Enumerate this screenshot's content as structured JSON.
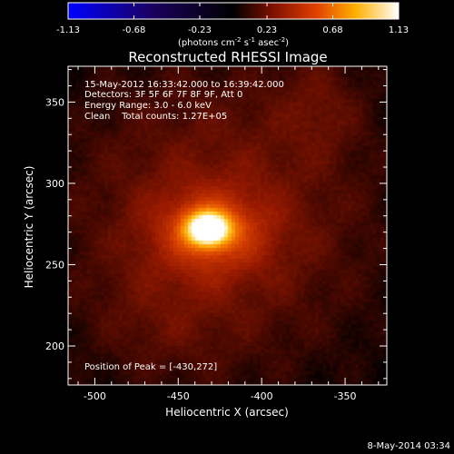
{
  "chart_data": {
    "type": "heatmap",
    "title": "Reconstructed RHESSI Image",
    "xlabel": "Heliocentric X (arcsec)",
    "ylabel": "Heliocentric Y (arcsec)",
    "xlim": [
      -516,
      -325
    ],
    "ylim": [
      176,
      372
    ],
    "x_ticks": [
      -500,
      -450,
      -400,
      -350
    ],
    "y_ticks": [
      200,
      250,
      300,
      350
    ],
    "colorbar": {
      "min": -1.13,
      "max": 1.13,
      "ticks": [
        "-1.13",
        "-0.68",
        "-0.23",
        "0.23",
        "0.68",
        "1.13"
      ],
      "units_label": "(photons cm",
      "units_exp1": "-2",
      "units_mid": " s",
      "units_exp2": "-1",
      "units_mid2": " asec",
      "units_exp3": "-2",
      "units_close": ")"
    },
    "info_lines": [
      "15-May-2012 16:33:42.000 to 16:39:42.000",
      "Detectors: 3F 5F 6F 7F 8F 9F, Att 0",
      "Energy Range: 3.0 - 6.0 keV",
      "Clean    Total counts: 1.27E+05"
    ],
    "peak_label": "Position of Peak = [-430,272]",
    "peak": {
      "x": -430,
      "y": 272,
      "value": 1.13
    },
    "components": [
      {
        "x": -432,
        "y": 272,
        "sx": 9,
        "sy": 7,
        "amp": 0.95
      },
      {
        "x": -430,
        "y": 270,
        "sx": 24,
        "sy": 18,
        "amp": 0.28
      },
      {
        "x": -425,
        "y": 280,
        "sx": 70,
        "sy": 70,
        "amp": 0.22
      },
      {
        "x": -365,
        "y": 350,
        "sx": 18,
        "sy": 22,
        "amp": 0.1
      },
      {
        "x": -460,
        "y": 215,
        "sx": 30,
        "sy": 25,
        "amp": 0.06
      }
    ],
    "footer_date": "8-May-2014 03:34"
  }
}
